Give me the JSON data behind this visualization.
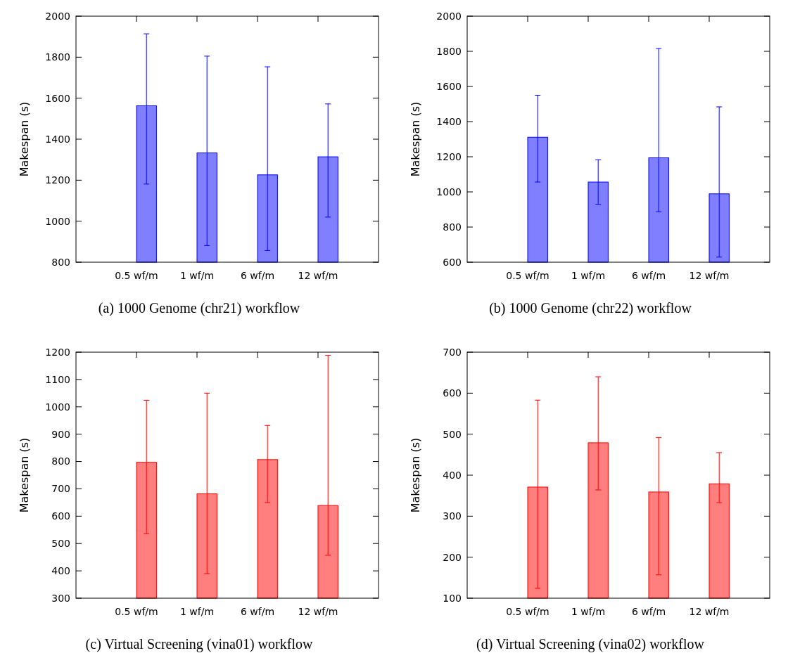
{
  "chart_data": [
    {
      "type": "bar",
      "title": "(a) 1000 Genome (chr21) workflow",
      "ylabel": "Makespan (s)",
      "categories": [
        "0.5 wf/m",
        "1 wf/m",
        "6 wf/m",
        "12 wf/m"
      ],
      "ylim": [
        800,
        2000
      ],
      "yticks": [
        800,
        1000,
        1200,
        1400,
        1600,
        1800,
        2000
      ],
      "grid": false,
      "series": [
        {
          "color": "#0000ff",
          "values": [
            1563,
            1333,
            1226,
            1314
          ],
          "errors": [
            [
              1181,
              1914
            ],
            [
              881,
              1805
            ],
            [
              857,
              1753
            ],
            [
              1020,
              1572
            ]
          ]
        }
      ]
    },
    {
      "type": "bar",
      "title": "(b) 1000 Genome (chr22) workflow",
      "ylabel": "Makespan (s)",
      "categories": [
        "0.5 wf/m",
        "1 wf/m",
        "6 wf/m",
        "12 wf/m"
      ],
      "ylim": [
        600,
        2000
      ],
      "yticks": [
        600,
        800,
        1000,
        1200,
        1400,
        1600,
        1800,
        2000
      ],
      "grid": false,
      "series": [
        {
          "color": "#0000ff",
          "values": [
            1311,
            1056,
            1194,
            989
          ],
          "errors": [
            [
              1056,
              1550
            ],
            [
              929,
              1183
            ],
            [
              887,
              1816
            ],
            [
              629,
              1484
            ]
          ]
        }
      ]
    },
    {
      "type": "bar",
      "title": "(c) Virtual Screening (vina01) workflow",
      "ylabel": "Makespan (s)",
      "categories": [
        "0.5 wf/m",
        "1 wf/m",
        "6 wf/m",
        "12 wf/m"
      ],
      "ylim": [
        300,
        1200
      ],
      "yticks": [
        300,
        400,
        500,
        600,
        700,
        800,
        900,
        1000,
        1100,
        1200
      ],
      "grid": false,
      "series": [
        {
          "color": "#ff0000",
          "values": [
            797,
            682,
            807,
            639
          ],
          "errors": [
            [
              536,
              1024
            ],
            [
              390,
              1050
            ],
            [
              650,
              932
            ],
            [
              457,
              1188
            ]
          ]
        }
      ]
    },
    {
      "type": "bar",
      "title": "(d) Virtual Screening (vina02) workflow",
      "ylabel": "Makespan (s)",
      "categories": [
        "0.5 wf/m",
        "1 wf/m",
        "6 wf/m",
        "12 wf/m"
      ],
      "ylim": [
        100,
        700
      ],
      "yticks": [
        100,
        200,
        300,
        400,
        500,
        600,
        700
      ],
      "grid": false,
      "series": [
        {
          "color": "#ff0000",
          "values": [
            371,
            479,
            359,
            379
          ],
          "errors": [
            [
              124,
              583
            ],
            [
              364,
              640
            ],
            [
              157,
              492
            ],
            [
              333,
              455
            ]
          ]
        }
      ]
    }
  ]
}
